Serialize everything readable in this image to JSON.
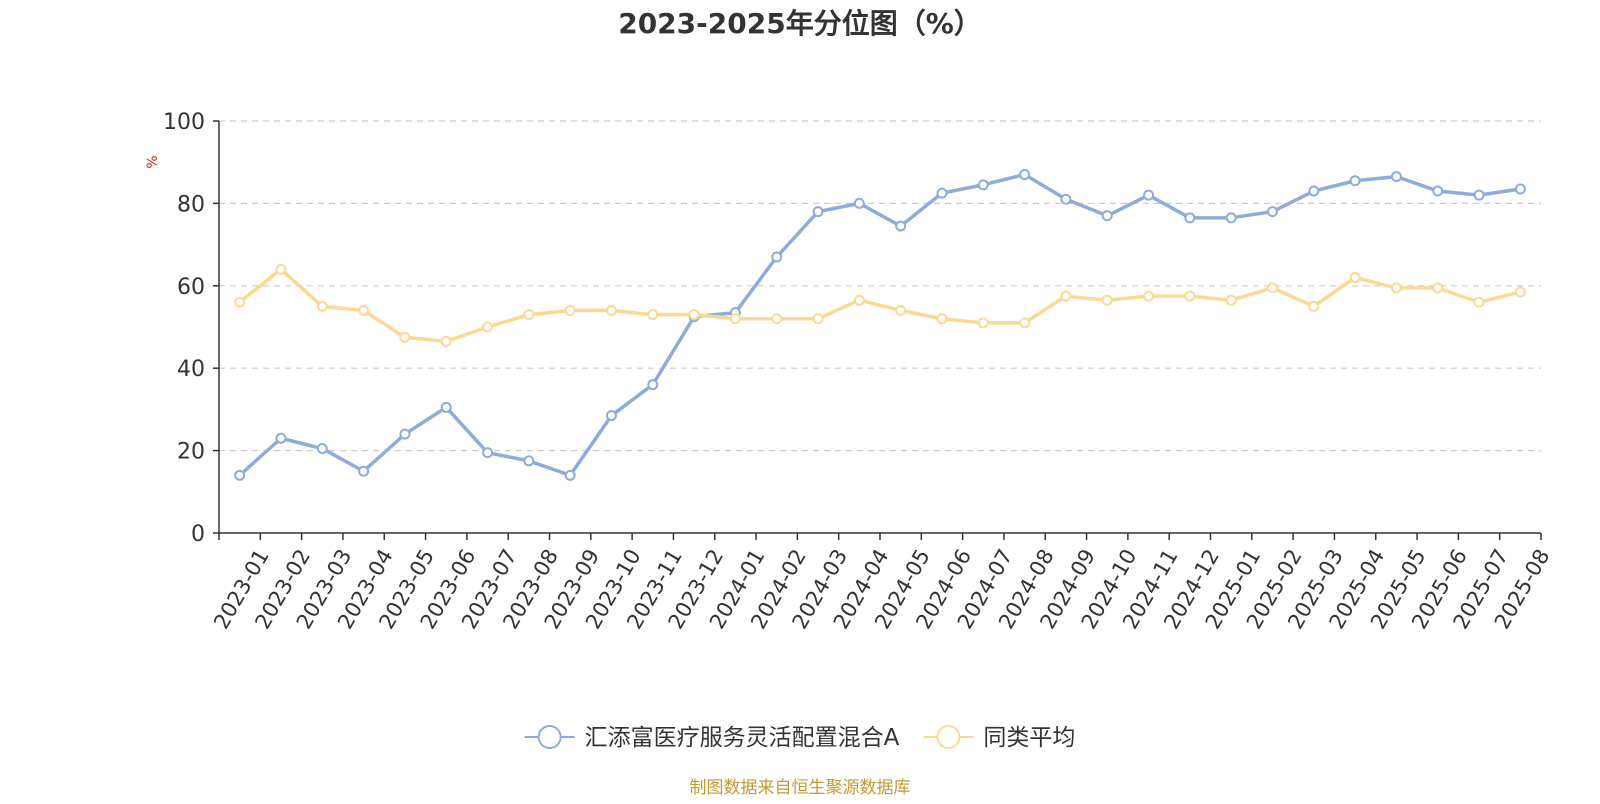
{
  "chart_data": {
    "type": "line",
    "title": "2023-2025年分位图（%）",
    "ylabel": "%",
    "xlabel": "",
    "ylim": [
      0,
      100
    ],
    "yticks": [
      0,
      20,
      40,
      60,
      80,
      100
    ],
    "grid": true,
    "legend_position": "bottom",
    "categories": [
      "2023-01",
      "2023-02",
      "2023-03",
      "2023-04",
      "2023-05",
      "2023-06",
      "2023-07",
      "2023-08",
      "2023-09",
      "2023-10",
      "2023-11",
      "2023-12",
      "2024-01",
      "2024-02",
      "2024-03",
      "2024-04",
      "2024-05",
      "2024-06",
      "2024-07",
      "2024-08",
      "2024-09",
      "2024-10",
      "2024-11",
      "2024-12",
      "2025-01",
      "2025-02",
      "2025-03",
      "2025-04",
      "2025-05",
      "2025-06",
      "2025-07",
      "2025-08"
    ],
    "series": [
      {
        "name": "汇添富医疗服务灵活配置混合A",
        "color": "#8eacd9",
        "values": [
          14,
          23,
          20.5,
          15,
          24,
          30.5,
          19.5,
          17.5,
          14,
          28.5,
          36,
          52.5,
          53.5,
          67,
          78,
          80,
          74.5,
          82.5,
          84.5,
          87,
          81,
          77,
          82,
          76.5,
          76.5,
          78,
          83,
          85.5,
          86.5,
          83,
          82,
          83.5
        ]
      },
      {
        "name": "同类平均",
        "color": "#fbd994",
        "values": [
          56,
          64,
          55,
          54,
          47.5,
          46.5,
          50,
          53,
          54,
          54,
          53,
          53,
          52,
          52,
          52,
          56.5,
          54,
          52,
          51,
          51,
          57.5,
          56.5,
          57.5,
          57.5,
          56.5,
          59.5,
          55,
          62,
          59.5,
          59.5,
          56,
          58.5
        ]
      }
    ]
  },
  "footer": {
    "source_text": "制图数据来自恒生聚源数据库"
  },
  "colors": {
    "source_text": "#c59a2f",
    "ylabel": "#e0211d",
    "title": "#333333",
    "axis": "#333333",
    "grid": "#cccccc"
  }
}
